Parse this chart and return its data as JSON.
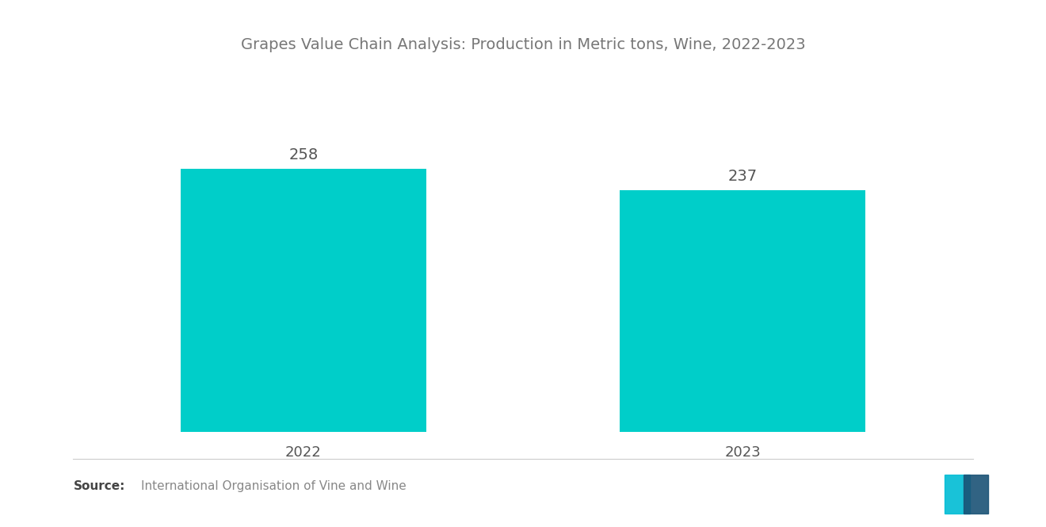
{
  "title": "Grapes Value Chain Analysis: Production in Metric tons, Wine, 2022-2023",
  "categories": [
    "2022",
    "2023"
  ],
  "values": [
    258,
    237
  ],
  "bar_color": "#00CEC9",
  "label_color": "#555555",
  "title_color": "#777777",
  "source_bold": "Source:",
  "source_text": "International Organisation of Vine and Wine",
  "source_color": "#888888",
  "background_color": "#ffffff",
  "ylim": [
    0,
    320
  ],
  "bar_width": 0.28,
  "title_fontsize": 14,
  "label_fontsize": 14,
  "tick_fontsize": 13,
  "source_fontsize": 11
}
